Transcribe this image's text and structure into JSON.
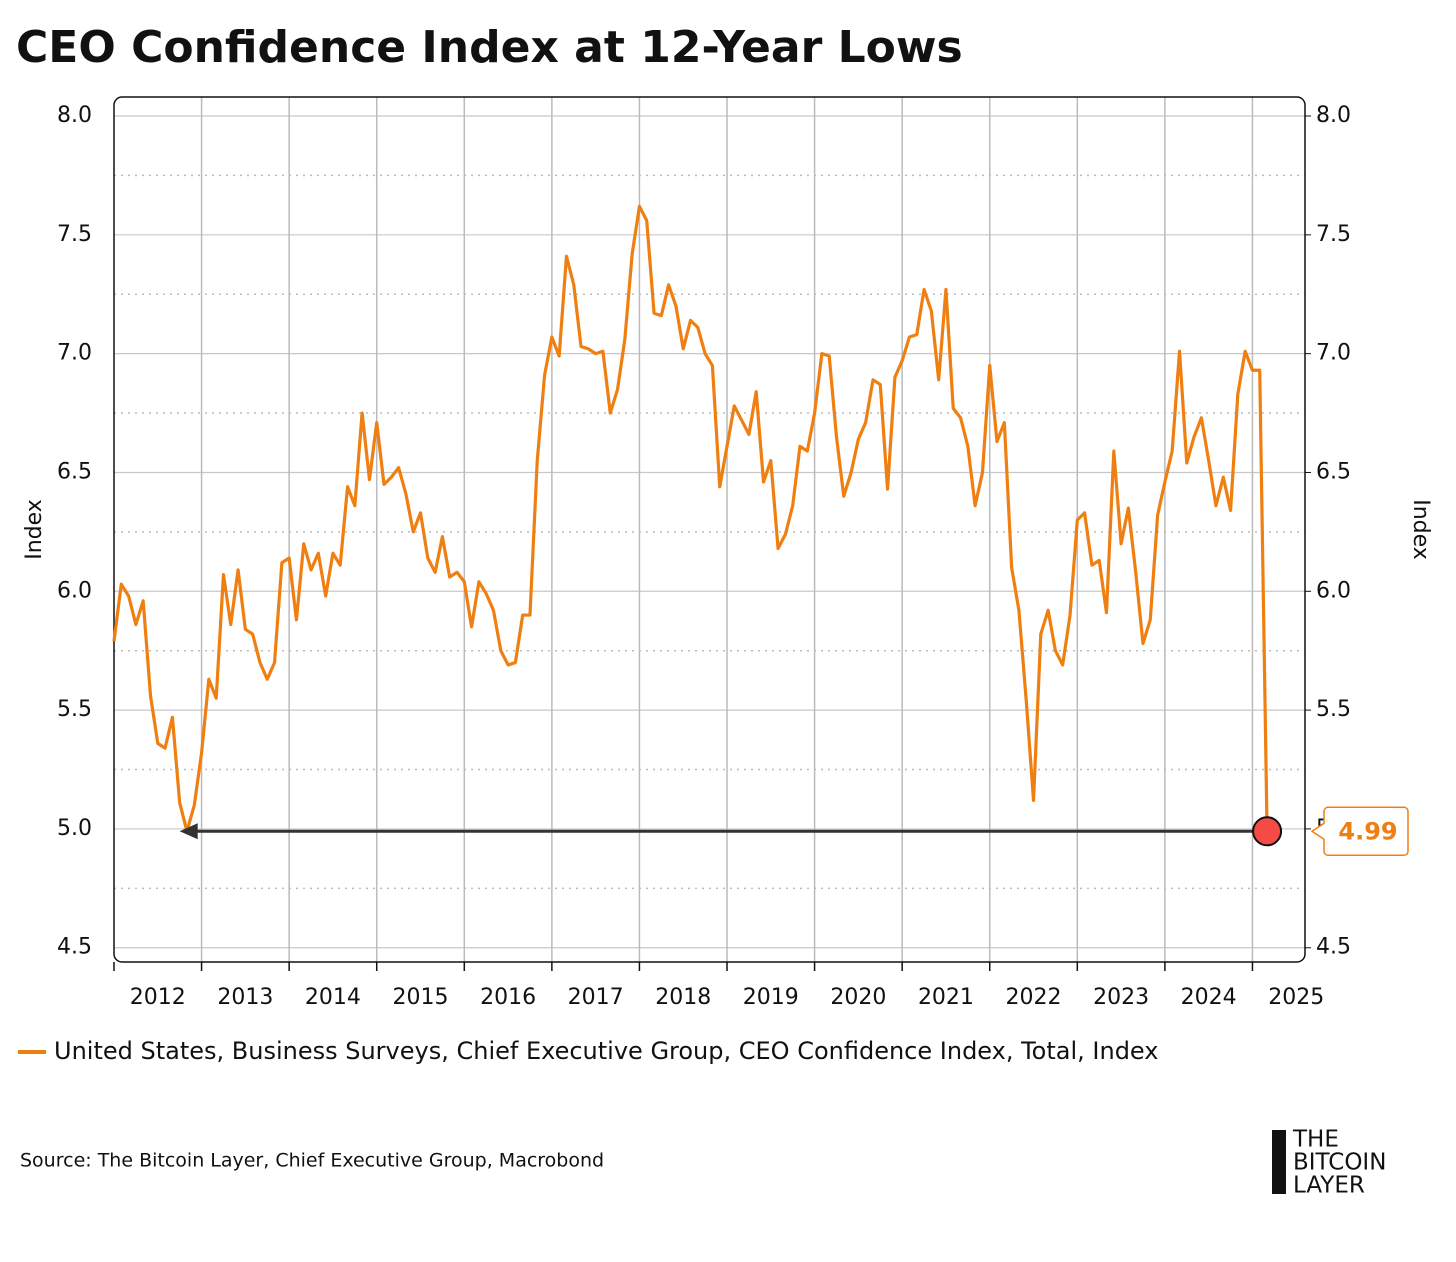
{
  "chart_data": {
    "type": "line",
    "title": "CEO Confidence Index at 12-Year Lows",
    "ylabel": "Index",
    "y2label": "Index",
    "source": "Source: The Bitcoin Layer, Chief Executive Group, Macrobond",
    "logo": [
      "THE",
      "BITCOIN",
      "LAYER"
    ],
    "x": [
      2012,
      2012.083,
      2012.167,
      2012.25,
      2012.333,
      2012.417,
      2012.5,
      2012.583,
      2012.667,
      2012.75,
      2012.833,
      2012.917,
      2013,
      2013.083,
      2013.167,
      2013.25,
      2013.333,
      2013.417,
      2013.5,
      2013.583,
      2013.667,
      2013.75,
      2013.833,
      2013.917,
      2014,
      2014.083,
      2014.167,
      2014.25,
      2014.333,
      2014.417,
      2014.5,
      2014.583,
      2014.667,
      2014.75,
      2014.833,
      2014.917,
      2015,
      2015.083,
      2015.167,
      2015.25,
      2015.333,
      2015.417,
      2015.5,
      2015.583,
      2015.667,
      2015.75,
      2015.833,
      2015.917,
      2016,
      2016.083,
      2016.167,
      2016.25,
      2016.333,
      2016.417,
      2016.5,
      2016.583,
      2016.667,
      2016.75,
      2016.833,
      2016.917,
      2017,
      2017.083,
      2017.167,
      2017.25,
      2017.333,
      2017.417,
      2017.5,
      2017.583,
      2017.667,
      2017.75,
      2017.833,
      2017.917,
      2018,
      2018.083,
      2018.167,
      2018.25,
      2018.333,
      2018.417,
      2018.5,
      2018.583,
      2018.667,
      2018.75,
      2018.833,
      2018.917,
      2019,
      2019.083,
      2019.167,
      2019.25,
      2019.333,
      2019.417,
      2019.5,
      2019.583,
      2019.667,
      2019.75,
      2019.833,
      2019.917,
      2020,
      2020.083,
      2020.167,
      2020.25,
      2020.333,
      2020.417,
      2020.5,
      2020.583,
      2020.667,
      2020.75,
      2020.833,
      2020.917,
      2021,
      2021.083,
      2021.167,
      2021.25,
      2021.333,
      2021.417,
      2021.5,
      2021.583,
      2021.667,
      2021.75,
      2021.833,
      2021.917,
      2022,
      2022.083,
      2022.167,
      2022.25,
      2022.333,
      2022.417,
      2022.5,
      2022.583,
      2022.667,
      2022.75,
      2022.833,
      2022.917,
      2023,
      2023.083,
      2023.167,
      2023.25,
      2023.333,
      2023.417,
      2023.5,
      2023.583,
      2023.667,
      2023.75,
      2023.833,
      2023.917,
      2024,
      2024.083,
      2024.167,
      2024.25,
      2024.333,
      2024.417,
      2024.5,
      2024.583,
      2024.667,
      2024.75,
      2024.833,
      2024.917,
      2025,
      2025.083,
      2025.167
    ],
    "series": [
      {
        "name": "United States, Business Surveys, Chief Executive Group, CEO Confidence Index, Total, Index",
        "color": "#f07f12",
        "values": [
          5.79,
          6.03,
          5.98,
          5.86,
          5.96,
          5.56,
          5.36,
          5.34,
          5.47,
          5.11,
          4.99,
          5.1,
          5.32,
          5.63,
          5.55,
          6.07,
          5.86,
          6.09,
          5.84,
          5.82,
          5.7,
          5.63,
          5.7,
          6.12,
          6.14,
          5.88,
          6.2,
          6.09,
          6.16,
          5.98,
          6.16,
          6.11,
          6.44,
          6.36,
          6.75,
          6.47,
          6.71,
          6.45,
          6.48,
          6.52,
          6.41,
          6.25,
          6.33,
          6.14,
          6.08,
          6.23,
          6.06,
          6.08,
          6.04,
          5.85,
          6.04,
          5.99,
          5.92,
          5.75,
          5.69,
          5.7,
          5.9,
          5.9,
          6.55,
          6.91,
          7.07,
          6.99,
          7.41,
          7.29,
          7.03,
          7.02,
          7.0,
          7.01,
          6.75,
          6.85,
          7.06,
          7.42,
          7.62,
          7.56,
          7.17,
          7.16,
          7.29,
          7.2,
          7.02,
          7.14,
          7.11,
          7.0,
          6.95,
          6.44,
          6.61,
          6.78,
          6.72,
          6.66,
          6.84,
          6.46,
          6.55,
          6.18,
          6.24,
          6.36,
          6.61,
          6.59,
          6.75,
          7.0,
          6.99,
          6.65,
          6.4,
          6.5,
          6.64,
          6.71,
          6.89,
          6.87,
          6.43,
          6.9,
          6.97,
          7.07,
          7.08,
          7.27,
          7.18,
          6.89,
          7.27,
          6.77,
          6.73,
          6.61,
          6.36,
          6.5,
          6.95,
          6.63,
          6.71,
          6.1,
          5.92,
          5.54,
          5.12,
          5.82,
          5.92,
          5.75,
          5.69,
          5.9,
          6.3,
          6.33,
          6.11,
          6.13,
          5.91,
          6.59,
          6.2,
          6.35,
          6.08,
          5.78,
          5.88,
          6.32,
          6.46,
          6.59,
          7.01,
          6.54,
          6.65,
          6.73,
          6.55,
          6.36,
          6.48,
          6.34,
          6.83,
          7.01,
          6.93,
          6.93,
          4.99
        ]
      }
    ],
    "xlim": [
      2012,
      2025.6
    ],
    "xticks": [
      2012,
      2013,
      2014,
      2015,
      2016,
      2017,
      2018,
      2019,
      2020,
      2021,
      2022,
      2023,
      2024,
      2025
    ],
    "ylim": [
      4.44,
      8.08
    ],
    "yticks": [
      {
        "value": 4.5,
        "label": "4.5"
      },
      {
        "value": 5,
        "label": "5.0"
      },
      {
        "value": 5.5,
        "label": "5.5"
      },
      {
        "value": 6,
        "label": "6.0"
      },
      {
        "value": 6.5,
        "label": "6.5"
      },
      {
        "value": 7,
        "label": "7.0"
      },
      {
        "value": 7.5,
        "label": "7.5"
      },
      {
        "value": 8,
        "label": "8.0"
      }
    ],
    "yticks_minor": [
      4.75,
      5.25,
      5.75,
      6.25,
      6.75,
      7.25,
      7.75
    ],
    "y2lim": [
      4.44,
      8.08
    ],
    "y2ticks": [
      {
        "value": 4.5,
        "label": "4.5"
      },
      {
        "value": 5,
        "label": "5.0"
      },
      {
        "value": 5.5,
        "label": "5.5"
      },
      {
        "value": 6,
        "label": "6.0"
      },
      {
        "value": 6.5,
        "label": "6.5"
      },
      {
        "value": 7,
        "label": "7.0"
      },
      {
        "value": 7.5,
        "label": "7.5"
      },
      {
        "value": 8,
        "label": "8.0"
      }
    ],
    "annotation": {
      "text": "4.99",
      "x": 2025.167,
      "y": 4.99,
      "color": "#f44b45"
    },
    "arrow": {
      "x": [
        2025.0,
        2012.75
      ],
      "y": [
        4.99,
        4.99
      ]
    },
    "grid": true
  }
}
